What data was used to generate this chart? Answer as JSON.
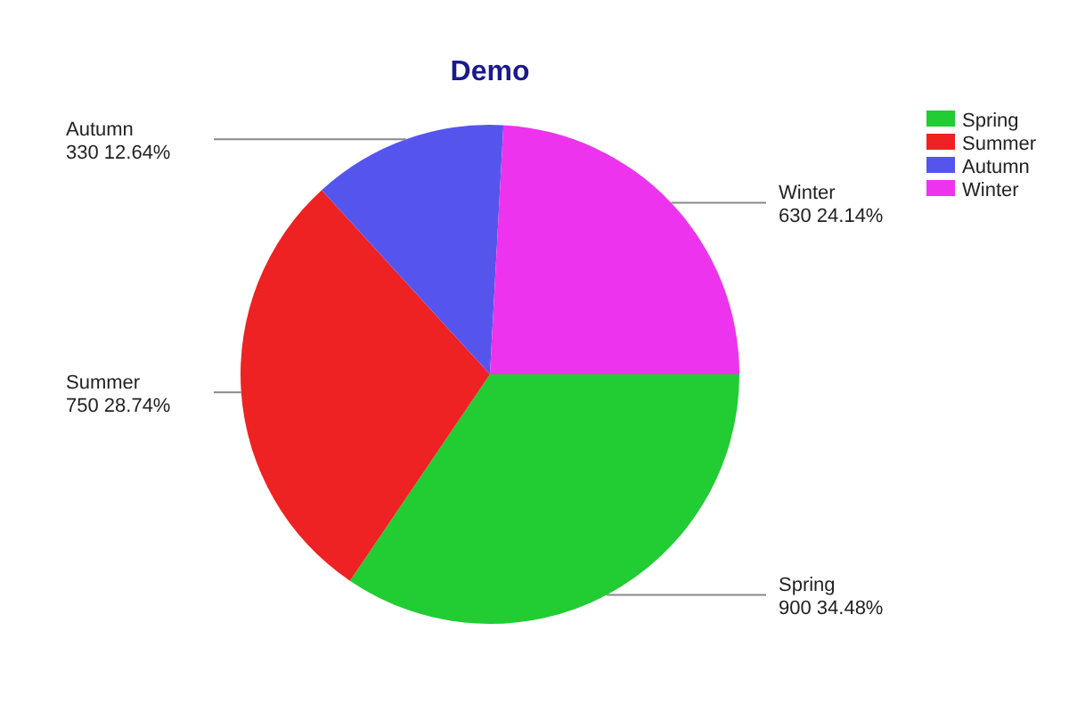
{
  "chart_data": {
    "type": "pie",
    "title": "Demo",
    "categories": [
      "Spring",
      "Summer",
      "Autumn",
      "Winter"
    ],
    "values": [
      900,
      750,
      330,
      630
    ],
    "colors": [
      "#22cc33",
      "#ee2222",
      "#5555ee",
      "#ee33ee"
    ],
    "value_labels": [
      "900 34.48%",
      "750 28.74%",
      "330 12.64%",
      "630 24.14%"
    ],
    "legend": "top right"
  }
}
